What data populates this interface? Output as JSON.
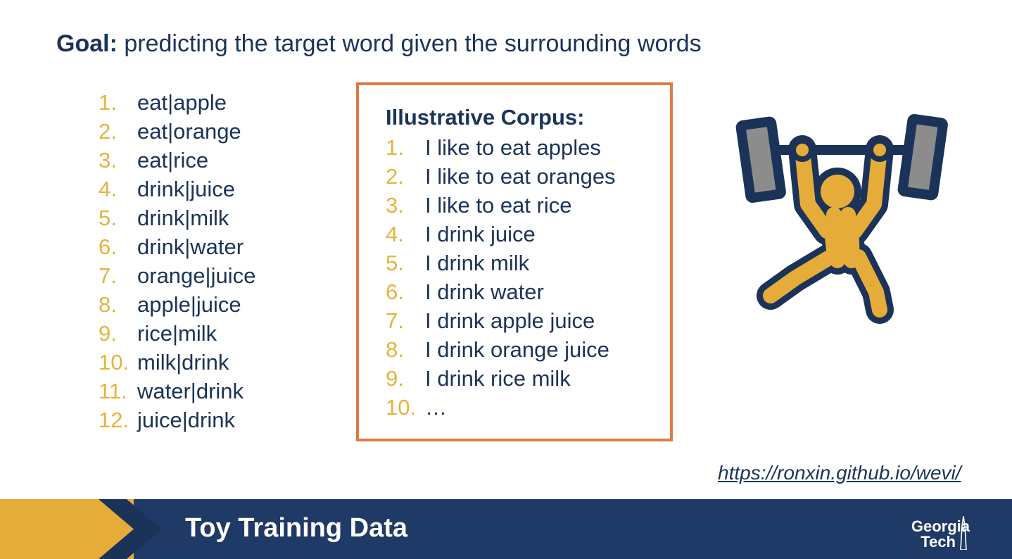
{
  "goal": {
    "label": "Goal:",
    "text": "predicting the target word given the surrounding words"
  },
  "training_pairs": [
    {
      "n": "1.",
      "t": "eat|apple"
    },
    {
      "n": "2.",
      "t": "eat|orange"
    },
    {
      "n": "3.",
      "t": "eat|rice"
    },
    {
      "n": "4.",
      "t": "drink|juice"
    },
    {
      "n": "5.",
      "t": "drink|milk"
    },
    {
      "n": "6.",
      "t": "drink|water"
    },
    {
      "n": "7.",
      "t": "orange|juice"
    },
    {
      "n": "8.",
      "t": "apple|juice"
    },
    {
      "n": "9.",
      "t": "rice|milk"
    },
    {
      "n": "10.",
      "t": "milk|drink"
    },
    {
      "n": "11.",
      "t": "water|drink"
    },
    {
      "n": "12.",
      "t": "juice|drink"
    }
  ],
  "corpus": {
    "title": "Illustrative Corpus:",
    "items": [
      {
        "n": "1.",
        "t": "I like to eat apples"
      },
      {
        "n": "2.",
        "t": "I like to eat oranges"
      },
      {
        "n": "3.",
        "t": "I like to eat rice"
      },
      {
        "n": "4.",
        "t": "I drink juice"
      },
      {
        "n": "5.",
        "t": "I drink milk"
      },
      {
        "n": "6.",
        "t": "I drink water"
      },
      {
        "n": "7.",
        "t": "I drink apple juice"
      },
      {
        "n": "8.",
        "t": "I drink orange juice"
      },
      {
        "n": "9.",
        "t": "I drink rice milk"
      },
      {
        "n": "10.",
        "t": "…"
      }
    ]
  },
  "illustration": {
    "icon": "weightlifter-icon"
  },
  "link": {
    "text": "https://ronxin.github.io/wevi/"
  },
  "footer": {
    "title": "Toy Training Data",
    "logo_line1": "Georgia",
    "logo_line2": "Tech"
  },
  "colors": {
    "navy": "#1b3358",
    "gold": "#e6b33c",
    "box_border": "#e07a45",
    "footer_bg": "#1f3a66"
  }
}
